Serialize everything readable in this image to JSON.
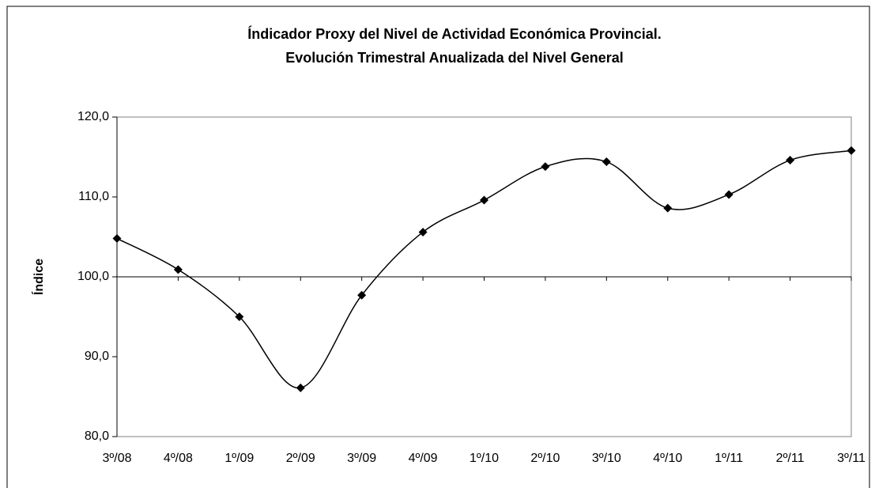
{
  "chart_data": {
    "type": "line",
    "title": [
      "Índicador Proxy del Nivel de Actividad Económica Provincial.",
      "Evolución Trimestral Anualizada del Nivel General"
    ],
    "y_label": "Índice",
    "categories": [
      "3º/08",
      "4º/08",
      "1º/09",
      "2º/09",
      "3º/09",
      "4º/09",
      "1º/10",
      "2º/10",
      "3º/10",
      "4º/10",
      "1º/11",
      "2º/11",
      "3º/11"
    ],
    "series": [
      {
        "name": "Nivel General",
        "color": "#000000",
        "values": [
          104.8,
          100.9,
          95.0,
          86.1,
          97.7,
          105.6,
          109.6,
          113.8,
          114.4,
          108.6,
          110.3,
          114.6,
          115.8
        ]
      }
    ],
    "ylim": [
      80,
      120
    ],
    "yticks": [
      {
        "value": 80,
        "label": "80,0"
      },
      {
        "value": 90,
        "label": "90,0"
      },
      {
        "value": 100,
        "label": "100,0"
      },
      {
        "value": 110,
        "label": "110,0"
      },
      {
        "value": 120,
        "label": "120,0"
      }
    ],
    "x_axis_at": 100,
    "smooth": true,
    "marker": "diamond",
    "grid": false
  }
}
